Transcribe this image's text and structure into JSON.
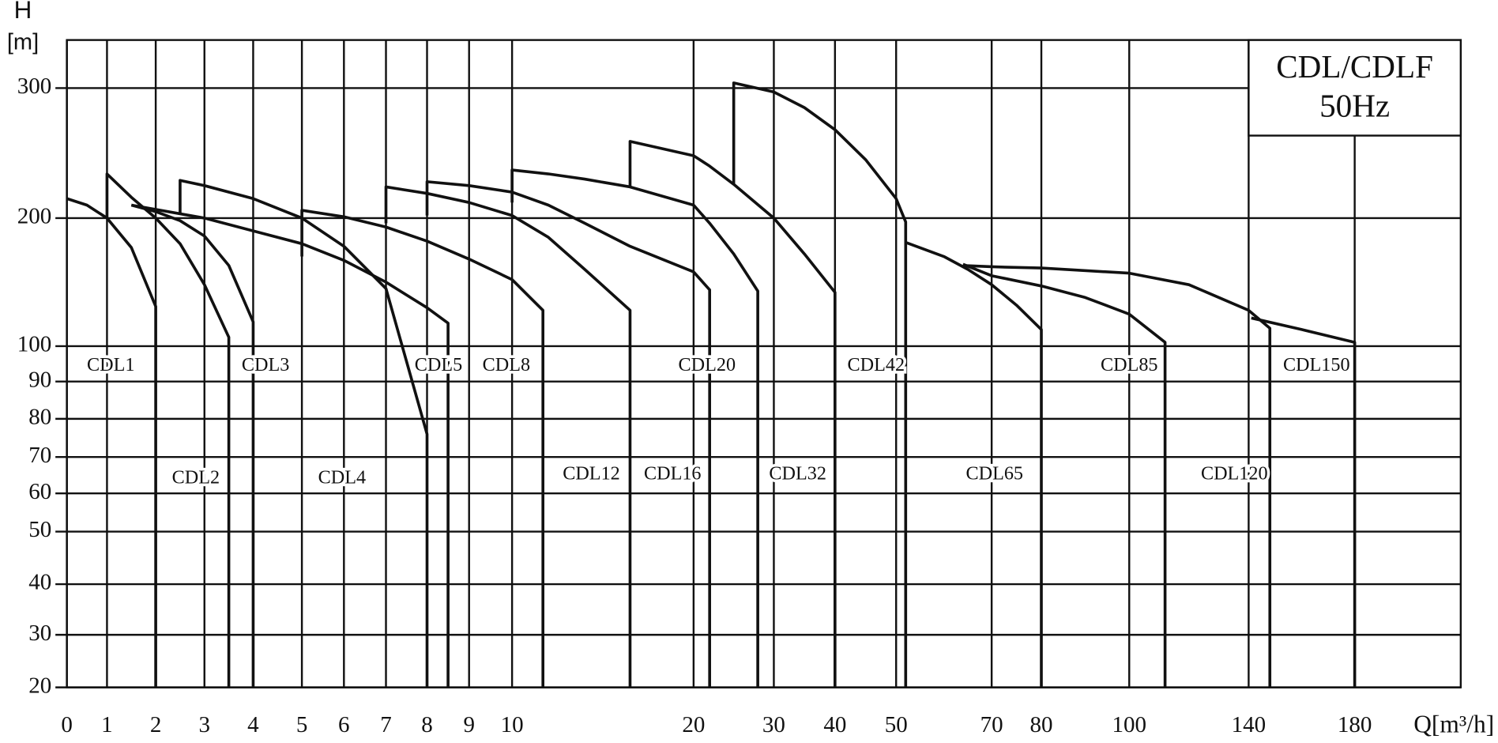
{
  "chart_data": {
    "type": "line",
    "title": "CDL/CDLF",
    "subtitle": "50Hz",
    "y_label": "H",
    "y_unit": "[m]",
    "x_label": "Q[m³/h]",
    "xlim": [
      0,
      220
    ],
    "ylim": [
      20,
      337
    ],
    "xticks": [
      0,
      1,
      2,
      3,
      4,
      5,
      6,
      7,
      8,
      9,
      10,
      20,
      30,
      40,
      50,
      70,
      80,
      100,
      140,
      180
    ],
    "yticks": [
      20,
      30,
      40,
      50,
      60,
      70,
      80,
      90,
      100,
      200,
      300
    ],
    "grid": true,
    "color": "#111111",
    "series": [
      {
        "name": "CDL1",
        "x": [
          0,
          0.5,
          1,
          1.5,
          2,
          2
        ],
        "values": [
          215,
          210,
          200,
          177,
          131,
          20
        ]
      },
      {
        "name": "CDL2",
        "x": [
          1,
          1,
          1.5,
          2,
          2.5,
          3,
          3.5,
          3.5
        ],
        "values": [
          200,
          234,
          216,
          200,
          180,
          148,
          107,
          20
        ]
      },
      {
        "name": "CDL3",
        "x": [
          1.5,
          2,
          2.5,
          3,
          3.5,
          4,
          4
        ],
        "values": [
          210,
          205,
          198,
          186,
          163,
          119,
          20
        ]
      },
      {
        "name": "CDL4",
        "x": [
          2.5,
          2.5,
          3,
          4,
          5,
          6,
          7,
          8,
          8
        ],
        "values": [
          203,
          229,
          225,
          215,
          200,
          178,
          145,
          76,
          20
        ]
      },
      {
        "name": "CDL5",
        "x": [
          1.5,
          3,
          4,
          5,
          6,
          7,
          8,
          8.5,
          8.5
        ],
        "values": [
          210,
          200,
          190,
          180,
          167,
          150,
          130,
          118,
          20
        ]
      },
      {
        "name": "CDL8",
        "x": [
          5,
          5,
          6,
          7,
          8,
          9,
          10,
          11.7,
          11.7
        ],
        "values": [
          170,
          206,
          201,
          193,
          182,
          168,
          152,
          128,
          20
        ]
      },
      {
        "name": "CDL12",
        "x": [
          7,
          7,
          8,
          9,
          10,
          12,
          14,
          16.5,
          16.5
        ],
        "values": [
          196,
          224,
          219,
          212,
          202,
          185,
          160,
          128,
          20
        ]
      },
      {
        "name": "CDL16",
        "x": [
          8,
          8,
          9,
          10,
          12,
          14,
          16.5,
          20,
          22,
          22
        ],
        "values": [
          202,
          228,
          225,
          220,
          210,
          196,
          178,
          158,
          144,
          20
        ]
      },
      {
        "name": "CDL20",
        "x": [
          10,
          10,
          12,
          14,
          16.5,
          20,
          22,
          25,
          28,
          28
        ],
        "values": [
          212,
          237,
          234,
          230,
          224,
          210,
          196,
          172,
          143,
          20
        ]
      },
      {
        "name": "CDL32",
        "x": [
          16.5,
          16.5,
          20,
          22,
          25,
          30,
          35,
          40,
          40
        ],
        "values": [
          224,
          259,
          248,
          240,
          226,
          200,
          172,
          142,
          20
        ]
      },
      {
        "name": "CDL42",
        "x": [
          25,
          25,
          30,
          35,
          40,
          45,
          50,
          52,
          52
        ],
        "values": [
          226,
          304,
          297,
          285,
          268,
          245,
          215,
          197,
          20
        ]
      },
      {
        "name": "CDL65",
        "x": [
          52,
          60,
          65,
          70,
          75,
          80,
          80
        ],
        "values": [
          181,
          170,
          160,
          148,
          132,
          113,
          20
        ]
      },
      {
        "name": "CDL85",
        "x": [
          64,
          70,
          80,
          90,
          100,
          112,
          112
        ],
        "values": [
          164,
          155,
          147,
          138,
          125,
          103,
          20
        ]
      },
      {
        "name": "CDL120",
        "x": [
          64,
          70,
          80,
          100,
          120,
          140,
          148,
          148
        ],
        "values": [
          163,
          162,
          161,
          157,
          148,
          128,
          114,
          20
        ]
      },
      {
        "name": "CDL150",
        "x": [
          141,
          160,
          180,
          180
        ],
        "values": [
          122,
          113,
          103,
          20
        ]
      }
    ]
  }
}
